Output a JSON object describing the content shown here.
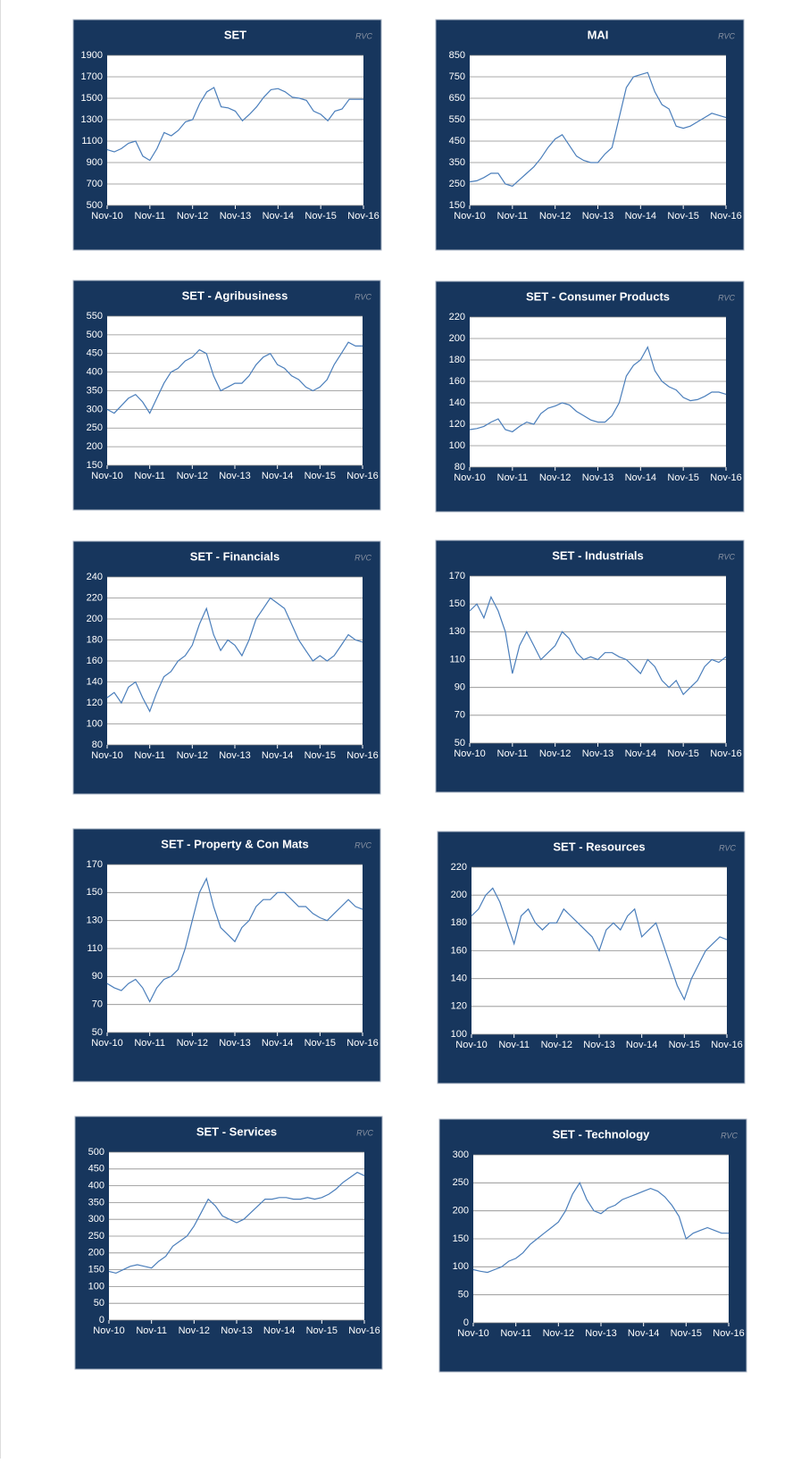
{
  "chart_data": [
    {
      "type": "line",
      "title": "SET",
      "watermark": "RVC",
      "color": "#4a7ebb",
      "grid": true,
      "categories": [
        "Nov-10",
        null,
        null,
        null,
        null,
        null,
        "Nov-11",
        null,
        null,
        null,
        null,
        null,
        "Nov-12",
        null,
        null,
        null,
        null,
        null,
        "Nov-13",
        null,
        null,
        null,
        null,
        null,
        "Nov-14",
        null,
        null,
        null,
        null,
        null,
        "Nov-15",
        null,
        null,
        null,
        null,
        null,
        "Nov-16"
      ],
      "values": [
        1020,
        1000,
        1030,
        1080,
        1100,
        960,
        920,
        1030,
        1180,
        1150,
        1200,
        1280,
        1300,
        1450,
        1560,
        1600,
        1420,
        1410,
        1380,
        1290,
        1350,
        1420,
        1510,
        1580,
        1590,
        1560,
        1510,
        1500,
        1480,
        1380,
        1350,
        1290,
        1380,
        1400,
        1490,
        1490,
        1490
      ],
      "ylim": [
        500,
        1900
      ],
      "yticks": [
        500,
        700,
        900,
        1100,
        1300,
        1500,
        1700,
        1900
      ]
    },
    {
      "type": "line",
      "title": "MAI",
      "watermark": "RVC",
      "color": "#4a7ebb",
      "grid": true,
      "categories": [
        "Nov-10",
        null,
        null,
        null,
        null,
        null,
        "Nov-11",
        null,
        null,
        null,
        null,
        null,
        "Nov-12",
        null,
        null,
        null,
        null,
        null,
        "Nov-13",
        null,
        null,
        null,
        null,
        null,
        "Nov-14",
        null,
        null,
        null,
        null,
        null,
        "Nov-15",
        null,
        null,
        null,
        null,
        null,
        "Nov-16"
      ],
      "values": [
        260,
        265,
        280,
        300,
        300,
        250,
        240,
        270,
        300,
        330,
        370,
        420,
        460,
        480,
        430,
        380,
        360,
        350,
        350,
        390,
        420,
        560,
        700,
        750,
        760,
        770,
        680,
        620,
        600,
        520,
        510,
        520,
        540,
        560,
        580,
        570,
        560
      ],
      "ylim": [
        150,
        850
      ],
      "yticks": [
        150,
        250,
        350,
        450,
        550,
        650,
        750,
        850
      ]
    },
    {
      "type": "line",
      "title": "SET - Agribusiness",
      "watermark": "RVC",
      "color": "#4a7ebb",
      "grid": true,
      "categories": [
        "Nov-10",
        null,
        null,
        null,
        null,
        null,
        "Nov-11",
        null,
        null,
        null,
        null,
        null,
        "Nov-12",
        null,
        null,
        null,
        null,
        null,
        "Nov-13",
        null,
        null,
        null,
        null,
        null,
        "Nov-14",
        null,
        null,
        null,
        null,
        null,
        "Nov-15",
        null,
        null,
        null,
        null,
        null,
        "Nov-16"
      ],
      "values": [
        300,
        290,
        310,
        330,
        340,
        320,
        290,
        330,
        370,
        400,
        410,
        430,
        440,
        460,
        450,
        390,
        350,
        360,
        370,
        370,
        390,
        420,
        440,
        450,
        420,
        410,
        390,
        380,
        360,
        350,
        360,
        380,
        420,
        450,
        480,
        470,
        470
      ],
      "ylim": [
        150,
        550
      ],
      "yticks": [
        150,
        200,
        250,
        300,
        350,
        400,
        450,
        500,
        550
      ]
    },
    {
      "type": "line",
      "title": "SET - Consumer Products",
      "watermark": "RVC",
      "color": "#4a7ebb",
      "grid": true,
      "categories": [
        "Nov-10",
        null,
        null,
        null,
        null,
        null,
        "Nov-11",
        null,
        null,
        null,
        null,
        null,
        "Nov-12",
        null,
        null,
        null,
        null,
        null,
        "Nov-13",
        null,
        null,
        null,
        null,
        null,
        "Nov-14",
        null,
        null,
        null,
        null,
        null,
        "Nov-15",
        null,
        null,
        null,
        null,
        null,
        "Nov-16"
      ],
      "values": [
        115,
        116,
        118,
        122,
        125,
        115,
        113,
        118,
        122,
        120,
        130,
        135,
        137,
        140,
        138,
        132,
        128,
        124,
        122,
        122,
        128,
        140,
        165,
        175,
        180,
        192,
        170,
        160,
        155,
        152,
        145,
        142,
        143,
        146,
        150,
        150,
        148
      ],
      "ylim": [
        80,
        220
      ],
      "yticks": [
        80,
        100,
        120,
        140,
        160,
        180,
        200,
        220
      ]
    },
    {
      "type": "line",
      "title": "SET - Financials",
      "watermark": "RVC",
      "color": "#4a7ebb",
      "grid": true,
      "categories": [
        "Nov-10",
        null,
        null,
        null,
        null,
        null,
        "Nov-11",
        null,
        null,
        null,
        null,
        null,
        "Nov-12",
        null,
        null,
        null,
        null,
        null,
        "Nov-13",
        null,
        null,
        null,
        null,
        null,
        "Nov-14",
        null,
        null,
        null,
        null,
        null,
        "Nov-15",
        null,
        null,
        null,
        null,
        null,
        "Nov-16"
      ],
      "values": [
        125,
        130,
        120,
        135,
        140,
        125,
        112,
        130,
        145,
        150,
        160,
        165,
        175,
        195,
        210,
        185,
        170,
        180,
        175,
        165,
        180,
        200,
        210,
        220,
        215,
        210,
        195,
        180,
        170,
        160,
        165,
        160,
        165,
        175,
        185,
        180,
        178
      ],
      "ylim": [
        80,
        240
      ],
      "yticks": [
        80,
        100,
        120,
        140,
        160,
        180,
        200,
        220,
        240
      ]
    },
    {
      "type": "line",
      "title": "SET - Industrials",
      "watermark": "RVC",
      "color": "#4a7ebb",
      "grid": true,
      "categories": [
        "Nov-10",
        null,
        null,
        null,
        null,
        null,
        "Nov-11",
        null,
        null,
        null,
        null,
        null,
        "Nov-12",
        null,
        null,
        null,
        null,
        null,
        "Nov-13",
        null,
        null,
        null,
        null,
        null,
        "Nov-14",
        null,
        null,
        null,
        null,
        null,
        "Nov-15",
        null,
        null,
        null,
        null,
        null,
        "Nov-16"
      ],
      "values": [
        145,
        150,
        140,
        155,
        145,
        130,
        100,
        120,
        130,
        120,
        110,
        115,
        120,
        130,
        125,
        115,
        110,
        112,
        110,
        115,
        115,
        112,
        110,
        105,
        100,
        110,
        105,
        95,
        90,
        95,
        85,
        90,
        95,
        105,
        110,
        108,
        112
      ],
      "ylim": [
        50,
        170
      ],
      "yticks": [
        50,
        70,
        90,
        110,
        130,
        150,
        170
      ]
    },
    {
      "type": "line",
      "title": "SET - Property & Con Mats",
      "watermark": "RVC",
      "color": "#4a7ebb",
      "grid": true,
      "categories": [
        "Nov-10",
        null,
        null,
        null,
        null,
        null,
        "Nov-11",
        null,
        null,
        null,
        null,
        null,
        "Nov-12",
        null,
        null,
        null,
        null,
        null,
        "Nov-13",
        null,
        null,
        null,
        null,
        null,
        "Nov-14",
        null,
        null,
        null,
        null,
        null,
        "Nov-15",
        null,
        null,
        null,
        null,
        null,
        "Nov-16"
      ],
      "values": [
        85,
        82,
        80,
        85,
        88,
        82,
        72,
        82,
        88,
        90,
        95,
        110,
        130,
        150,
        160,
        140,
        125,
        120,
        115,
        125,
        130,
        140,
        145,
        145,
        150,
        150,
        145,
        140,
        140,
        135,
        132,
        130,
        135,
        140,
        145,
        140,
        138
      ],
      "ylim": [
        50,
        170
      ],
      "yticks": [
        50,
        70,
        90,
        110,
        130,
        150,
        170
      ]
    },
    {
      "type": "line",
      "title": "SET - Resources",
      "watermark": "RVC",
      "color": "#4a7ebb",
      "grid": true,
      "categories": [
        "Nov-10",
        null,
        null,
        null,
        null,
        null,
        "Nov-11",
        null,
        null,
        null,
        null,
        null,
        "Nov-12",
        null,
        null,
        null,
        null,
        null,
        "Nov-13",
        null,
        null,
        null,
        null,
        null,
        "Nov-14",
        null,
        null,
        null,
        null,
        null,
        "Nov-15",
        null,
        null,
        null,
        null,
        null,
        "Nov-16"
      ],
      "values": [
        185,
        190,
        200,
        205,
        195,
        180,
        165,
        185,
        190,
        180,
        175,
        180,
        180,
        190,
        185,
        180,
        175,
        170,
        160,
        175,
        180,
        175,
        185,
        190,
        170,
        175,
        180,
        165,
        150,
        135,
        125,
        140,
        150,
        160,
        165,
        170,
        168
      ],
      "ylim": [
        100,
        220
      ],
      "yticks": [
        100,
        120,
        140,
        160,
        180,
        200,
        220
      ]
    },
    {
      "type": "line",
      "title": "SET - Services",
      "watermark": "RVC",
      "color": "#4a7ebb",
      "grid": true,
      "categories": [
        "Nov-10",
        null,
        null,
        null,
        null,
        null,
        "Nov-11",
        null,
        null,
        null,
        null,
        null,
        "Nov-12",
        null,
        null,
        null,
        null,
        null,
        "Nov-13",
        null,
        null,
        null,
        null,
        null,
        "Nov-14",
        null,
        null,
        null,
        null,
        null,
        "Nov-15",
        null,
        null,
        null,
        null,
        null,
        "Nov-16"
      ],
      "values": [
        145,
        140,
        150,
        160,
        165,
        160,
        155,
        175,
        190,
        220,
        235,
        250,
        280,
        320,
        360,
        340,
        310,
        300,
        290,
        300,
        320,
        340,
        360,
        360,
        365,
        365,
        360,
        360,
        365,
        360,
        365,
        375,
        390,
        410,
        425,
        440,
        430
      ],
      "ylim": [
        0,
        500
      ],
      "yticks": [
        0,
        50,
        100,
        150,
        200,
        250,
        300,
        350,
        400,
        450,
        500
      ]
    },
    {
      "type": "line",
      "title": "SET - Technology",
      "watermark": "RVC",
      "color": "#4a7ebb",
      "grid": true,
      "categories": [
        "Nov-10",
        null,
        null,
        null,
        null,
        null,
        "Nov-11",
        null,
        null,
        null,
        null,
        null,
        "Nov-12",
        null,
        null,
        null,
        null,
        null,
        "Nov-13",
        null,
        null,
        null,
        null,
        null,
        "Nov-14",
        null,
        null,
        null,
        null,
        null,
        "Nov-15",
        null,
        null,
        null,
        null,
        null,
        "Nov-16"
      ],
      "values": [
        95,
        92,
        90,
        95,
        100,
        110,
        115,
        125,
        140,
        150,
        160,
        170,
        180,
        200,
        230,
        250,
        220,
        200,
        195,
        205,
        210,
        220,
        225,
        230,
        235,
        240,
        235,
        225,
        210,
        190,
        150,
        160,
        165,
        170,
        165,
        160,
        160
      ],
      "ylim": [
        0,
        300
      ],
      "yticks": [
        0,
        50,
        100,
        150,
        200,
        250,
        300
      ]
    }
  ]
}
